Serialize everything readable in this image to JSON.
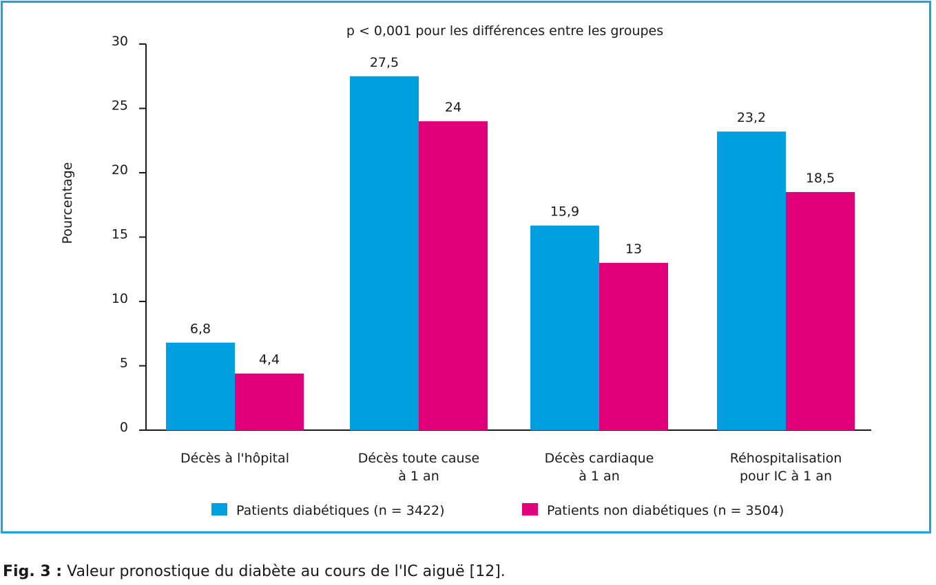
{
  "chart_data": {
    "type": "bar",
    "annotation": "p < 0,001 pour les différences entre les groupes",
    "ylabel": "Pourcentage",
    "xlabel": "",
    "ylim": [
      0,
      30
    ],
    "yticks": [
      "0",
      "5",
      "10",
      "15",
      "20",
      "25",
      "30"
    ],
    "categories": [
      [
        "Décès à l'hôpital"
      ],
      [
        "Décès toute cause",
        "à 1 an"
      ],
      [
        "Décès cardiaque",
        "à 1 an"
      ],
      [
        "Réhospitalisation",
        "pour IC à 1 an"
      ]
    ],
    "series": [
      {
        "name": "Patients diabétiques (n = 3422)",
        "color": "#009fdf",
        "values": [
          6.8,
          27.5,
          15.9,
          23.2
        ],
        "labels": [
          "6,8",
          "27,5",
          "15,9",
          "23,2"
        ]
      },
      {
        "name": "Patients non diabétiques (n = 3504)",
        "color": "#e2007a",
        "values": [
          4.4,
          24,
          13,
          18.5
        ],
        "labels": [
          "4,4",
          "24",
          "13",
          "18,5"
        ]
      }
    ],
    "grid": false,
    "legend_position": "bottom"
  },
  "caption": {
    "label": "Fig. 3 :",
    "text": " Valeur pronostique du diabète au cours de l'IC aiguë [12]."
  }
}
